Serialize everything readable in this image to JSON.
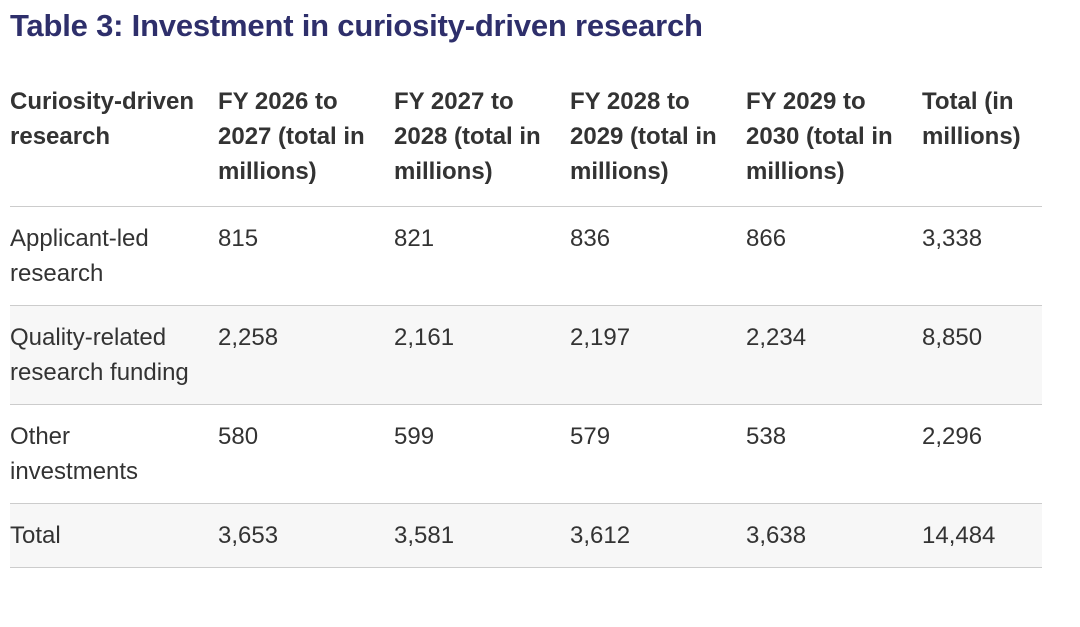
{
  "title": "Table 3: Investment in curiosity-driven research",
  "table": {
    "header": [
      "Curiosity-driven research",
      "FY 2026 to 2027 (total in millions)",
      "FY 2027 to 2028 (total in millions)",
      "FY 2028 to 2029 (total in millions)",
      "FY 2029 to 2030 (total in millions)",
      "Total (in millions)"
    ],
    "rows": [
      [
        "Applicant-led research",
        "815",
        "821",
        "836",
        "866",
        "3,338"
      ],
      [
        "Quality-related research funding",
        "2,258",
        "2,161",
        "2,197",
        "2,234",
        "8,850"
      ],
      [
        "Other investments",
        "580",
        "599",
        "579",
        "538",
        "2,296"
      ],
      [
        "Total",
        "3,653",
        "3,581",
        "3,612",
        "3,638",
        "14,484"
      ]
    ]
  }
}
